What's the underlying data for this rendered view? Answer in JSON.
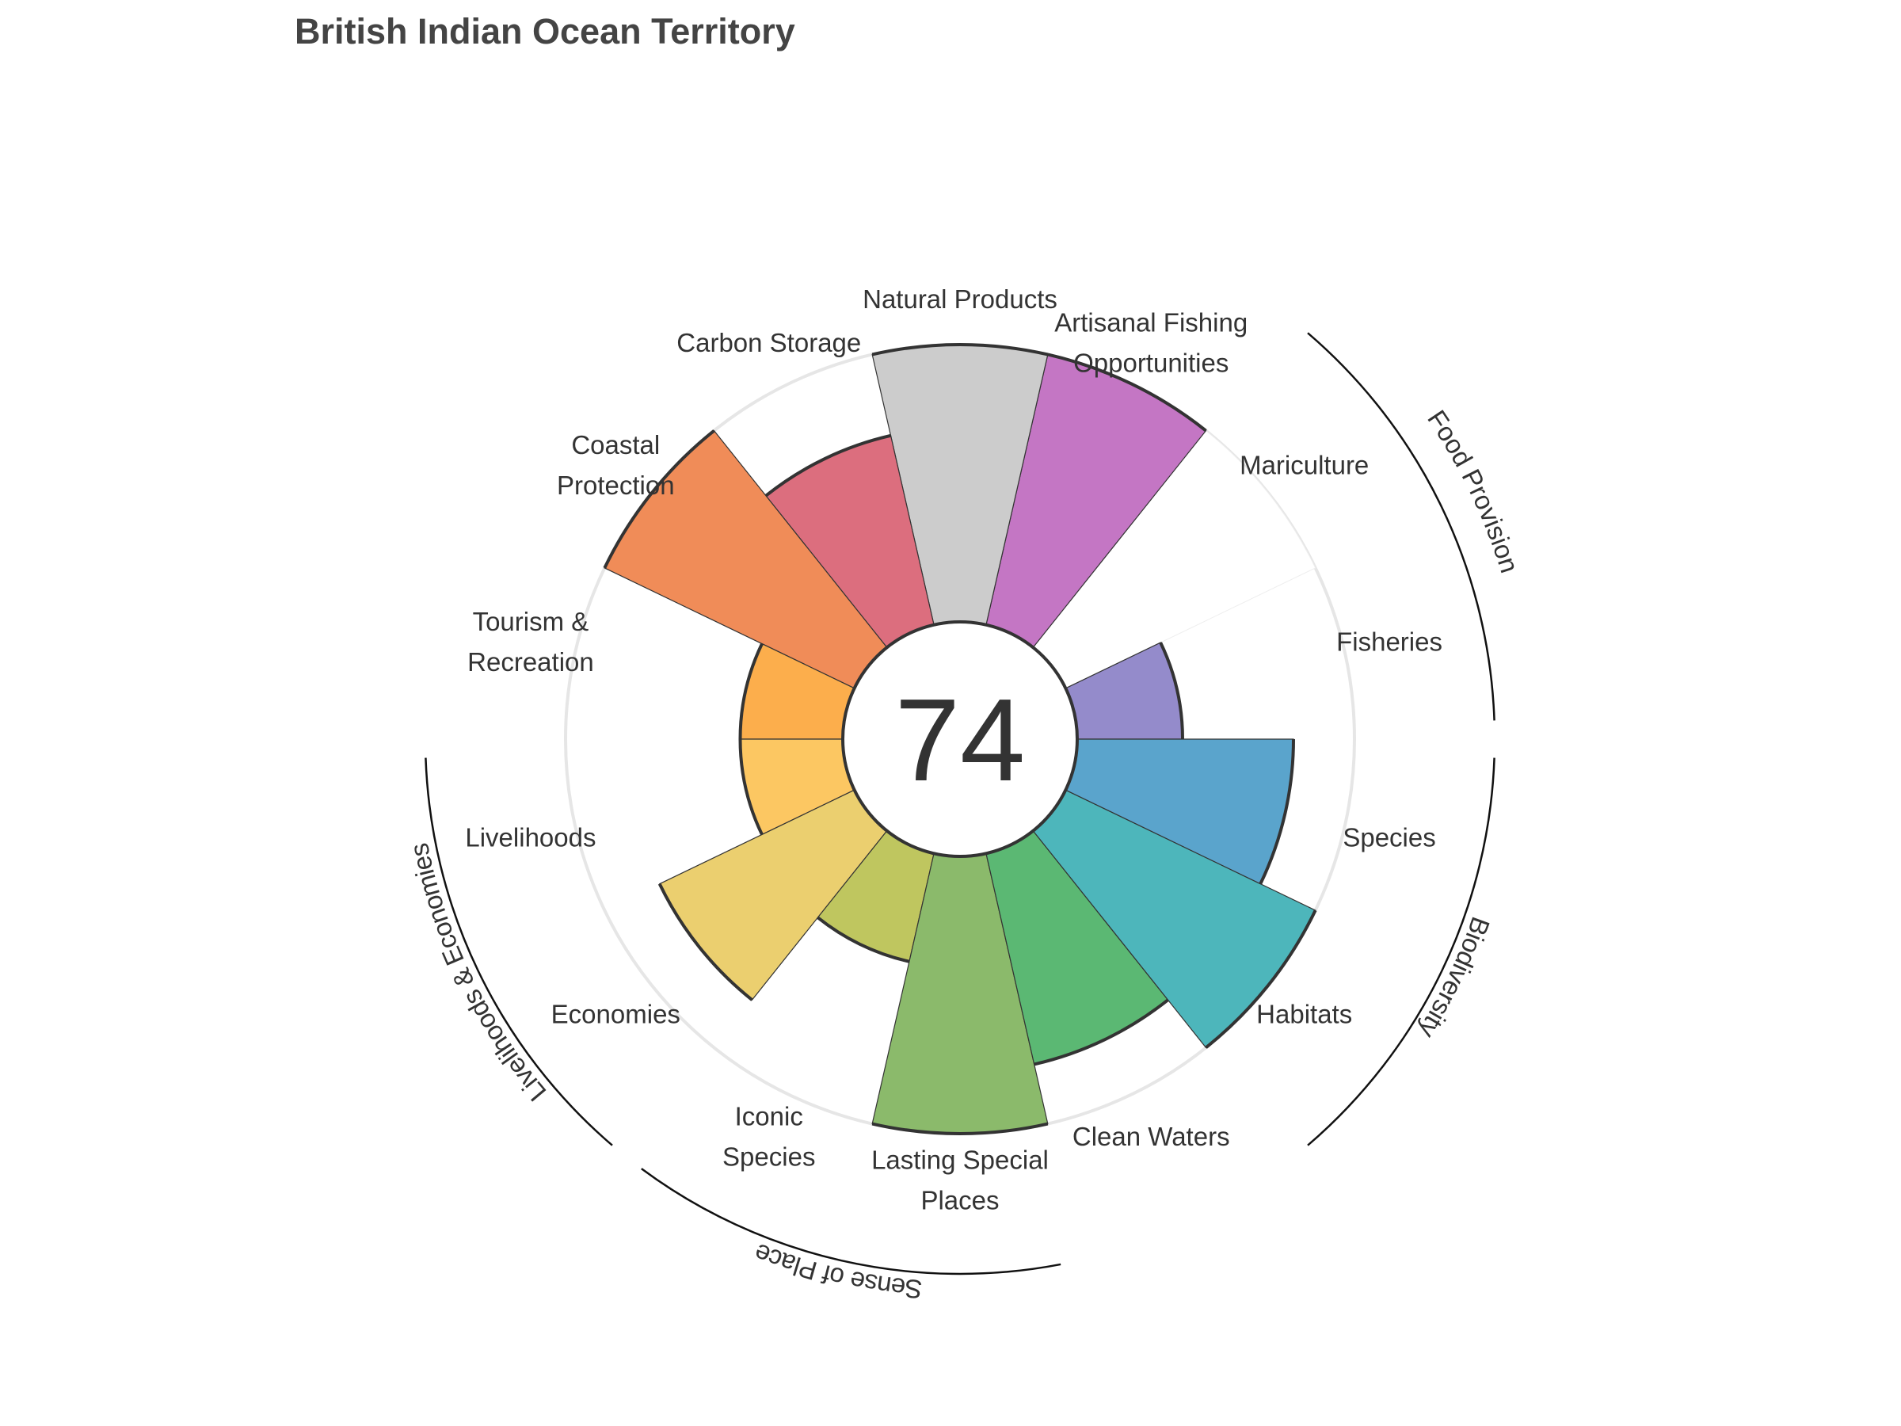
{
  "chart_data": {
    "type": "flower",
    "title": "British Indian Ocean Territory",
    "center_score": "74",
    "ylim": [
      0,
      100
    ],
    "petals": [
      {
        "label": [
          "Fisheries"
        ],
        "value": 38,
        "color": "#948bcb"
      },
      {
        "label": [
          "Mariculture"
        ],
        "value": null,
        "color": "#d8d2ec"
      },
      {
        "label": [
          "Artisanal Fishing",
          "Opportunities"
        ],
        "value": 100,
        "color": "#c476c4"
      },
      {
        "label": [
          "Natural Products"
        ],
        "value": 100,
        "color": "#cccccc"
      },
      {
        "label": [
          "Carbon Storage"
        ],
        "value": 70,
        "color": "#dc6e7e"
      },
      {
        "label": [
          "Coastal",
          "Protection"
        ],
        "value": 100,
        "color": "#f08c58"
      },
      {
        "label": [
          "Tourism &",
          "Recreation"
        ],
        "value": 37,
        "color": "#fcae4c"
      },
      {
        "label": [
          "Livelihoods"
        ],
        "value": 37,
        "color": "#fcc762"
      },
      {
        "label": [
          "Economies"
        ],
        "value": 78,
        "color": "#ebcf6f"
      },
      {
        "label": [
          "Iconic",
          "Species"
        ],
        "value": 40,
        "color": "#bfc65f"
      },
      {
        "label": [
          "Lasting Special",
          "Places"
        ],
        "value": 100,
        "color": "#8bba6b"
      },
      {
        "label": [
          "Clean Waters"
        ],
        "value": 78,
        "color": "#5bb873"
      },
      {
        "label": [
          "Habitats"
        ],
        "value": 100,
        "color": "#4db6bb"
      },
      {
        "label": [
          "Species"
        ],
        "value": 78,
        "color": "#5aa4cc"
      }
    ],
    "groups": [
      {
        "name": "Food Provision",
        "petals": [
          0,
          1
        ]
      },
      {
        "name": "Biodiversity",
        "petals": [
          12,
          13
        ]
      },
      {
        "name": "Sense of Place",
        "petals": [
          9,
          10
        ]
      },
      {
        "name": "Livelihoods & Economies",
        "petals": [
          7,
          8
        ]
      }
    ]
  }
}
